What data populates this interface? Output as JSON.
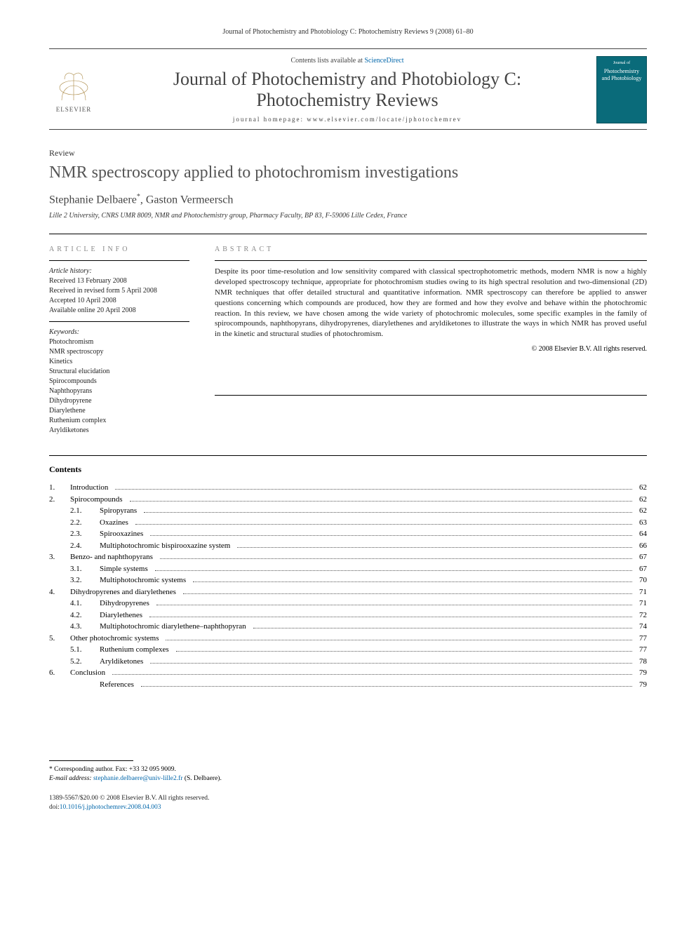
{
  "citation": "Journal of Photochemistry and Photobiology C: Photochemistry Reviews 9 (2008) 61–80",
  "banner": {
    "contents_prefix": "Contents lists available at ",
    "contents_link": "ScienceDirect",
    "journal_line1": "Journal of Photochemistry and Photobiology C:",
    "journal_line2": "Photochemistry Reviews",
    "homepage": "journal homepage: www.elsevier.com/locate/jphotochemrev",
    "publisher_label": "ELSEVIER",
    "cover_top": "Journal of",
    "cover_main": "Photochemistry and Photobiology"
  },
  "article": {
    "type": "Review",
    "title": "NMR spectroscopy applied to photochromism investigations",
    "authors_html": "Stephanie Delbaere*, Gaston Vermeersch",
    "author1": "Stephanie Delbaere",
    "author1_mark": "*",
    "author_sep": ", ",
    "author2": "Gaston Vermeersch",
    "affiliation": "Lille 2 University, CNRS UMR 8009, NMR and Photochemistry group, Pharmacy Faculty, BP 83, F-59006 Lille Cedex, France"
  },
  "info": {
    "heading": "ARTICLE INFO",
    "history_label": "Article history:",
    "received": "Received 13 February 2008",
    "revised": "Received in revised form 5 April 2008",
    "accepted": "Accepted 10 April 2008",
    "online": "Available online 20 April 2008",
    "keywords_label": "Keywords:",
    "keywords": [
      "Photochromism",
      "NMR spectroscopy",
      "Kinetics",
      "Structural elucidation",
      "Spirocompounds",
      "Naphthopyrans",
      "Dihydropyrene",
      "Diarylethene",
      "Ruthenium complex",
      "Aryldiketones"
    ]
  },
  "abstract": {
    "heading": "ABSTRACT",
    "text": "Despite its poor time-resolution and low sensitivity compared with classical spectrophotometric methods, modern NMR is now a highly developed spectroscopy technique, appropriate for photochromism studies owing to its high spectral resolution and two-dimensional (2D) NMR techniques that offer detailed structural and quantitative information. NMR spectroscopy can therefore be applied to answer questions concerning which compounds are produced, how they are formed and how they evolve and behave within the photochromic reaction. In this review, we have chosen among the wide variety of photochromic molecules, some specific examples in the family of spirocompounds, naphthopyrans, dihydropyrenes, diarylethenes and aryldiketones to illustrate the ways in which NMR has proved useful in the kinetic and structural studies of photochromism.",
    "copyright": "© 2008 Elsevier B.V. All rights reserved."
  },
  "contents": {
    "heading": "Contents",
    "items": [
      {
        "num": "1.",
        "title": "Introduction",
        "page": "62",
        "level": 0
      },
      {
        "num": "2.",
        "title": "Spirocompounds",
        "page": "62",
        "level": 0
      },
      {
        "num": "2.1.",
        "title": "Spiropyrans",
        "page": "62",
        "level": 1
      },
      {
        "num": "2.2.",
        "title": "Oxazines",
        "page": "63",
        "level": 1
      },
      {
        "num": "2.3.",
        "title": "Spirooxazines",
        "page": "64",
        "level": 1
      },
      {
        "num": "2.4.",
        "title": "Multiphotochromic bispirooxazine system",
        "page": "66",
        "level": 1
      },
      {
        "num": "3.",
        "title": "Benzo- and naphthopyrans",
        "page": "67",
        "level": 0
      },
      {
        "num": "3.1.",
        "title": "Simple systems",
        "page": "67",
        "level": 1
      },
      {
        "num": "3.2.",
        "title": "Multiphotochromic systems",
        "page": "70",
        "level": 1
      },
      {
        "num": "4.",
        "title": "Dihydropyrenes and diarylethenes",
        "page": "71",
        "level": 0
      },
      {
        "num": "4.1.",
        "title": "Dihydropyrenes",
        "page": "71",
        "level": 1
      },
      {
        "num": "4.2.",
        "title": "Diarylethenes",
        "page": "72",
        "level": 1
      },
      {
        "num": "4.3.",
        "title": "Multiphotochromic diarylethene–naphthopyran",
        "page": "74",
        "level": 1
      },
      {
        "num": "5.",
        "title": "Other photochromic systems",
        "page": "77",
        "level": 0
      },
      {
        "num": "5.1.",
        "title": "Ruthenium complexes",
        "page": "77",
        "level": 1
      },
      {
        "num": "5.2.",
        "title": "Aryldiketones",
        "page": "78",
        "level": 1
      },
      {
        "num": "6.",
        "title": "Conclusion",
        "page": "79",
        "level": 0
      },
      {
        "num": "",
        "title": "References",
        "page": "79",
        "level": 1
      }
    ]
  },
  "footnote": {
    "corr_label": "* Corresponding author. Fax: +33 32 095 9009.",
    "email_label": "E-mail address:",
    "email": "stephanie.delbaere@univ-lille2.fr",
    "email_tail": " (S. Delbaere)."
  },
  "bottom": {
    "issn_line": "1389-5567/$20.00 © 2008 Elsevier B.V. All rights reserved.",
    "doi_prefix": "doi:",
    "doi": "10.1016/j.jphotochemrev.2008.04.003"
  },
  "colors": {
    "link": "#0066aa",
    "elsevier_orange": "#e87722",
    "cover_bg": "#0a6b7a",
    "text_muted": "#555555"
  }
}
